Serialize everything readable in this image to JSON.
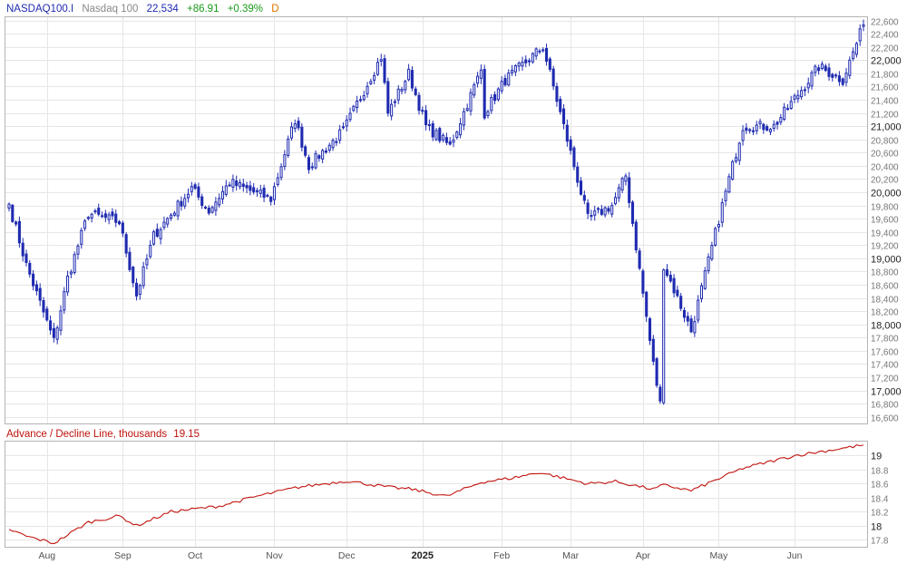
{
  "header": {
    "symbol": "NASDAQ100.I",
    "name": "Nasdaq 100",
    "last": "22,534",
    "change": "+86.91",
    "change_pct": "+0.39%",
    "period": "D"
  },
  "indicator": {
    "label": "Advance / Decline Line, thousands",
    "value": "19.15"
  },
  "colors": {
    "candle": "#1f2bb0",
    "ad_line": "#c0120c",
    "symbol_text": "#1f2bb0",
    "name_text": "#888888",
    "up_text": "#1a9a1a",
    "period_text": "#e07000",
    "indicator_text": "#c0120c"
  },
  "chart_data": [
    {
      "type": "candlestick",
      "title": "NASDAQ100.I Nasdaq 100",
      "y_axis_ticks": [
        "22,600",
        "22,400",
        "22,200",
        "22,000",
        "21,800",
        "21,600",
        "21,400",
        "21,200",
        "21,000",
        "20,800",
        "20,600",
        "20,400",
        "20,200",
        "20,000",
        "19,800",
        "19,600",
        "19,400",
        "19,200",
        "19,000",
        "18,800",
        "18,600",
        "18,400",
        "18,200",
        "18,000",
        "17,800",
        "17,600",
        "17,400",
        "17,200",
        "17,000",
        "16,800",
        "16,600"
      ],
      "y_axis_major": [
        "22,000",
        "21,000",
        "20,000",
        "19,000",
        "18,000",
        "17,000"
      ],
      "ylim": [
        16500,
        22650
      ],
      "x_axis_ticks": [
        "Aug",
        "Sep",
        "Oct",
        "Nov",
        "Dec",
        "2025",
        "Feb",
        "Mar",
        "Apr",
        "May",
        "Jun"
      ],
      "anchors": [
        {
          "date": "2024-07-17",
          "close": 19820
        },
        {
          "date": "2024-07-24",
          "close": 18900
        },
        {
          "date": "2024-08-05",
          "close": 17750
        },
        {
          "date": "2024-08-09",
          "close": 18700
        },
        {
          "date": "2024-08-19",
          "close": 19680
        },
        {
          "date": "2024-08-30",
          "close": 19550
        },
        {
          "date": "2024-09-06",
          "close": 18440
        },
        {
          "date": "2024-09-13",
          "close": 19340
        },
        {
          "date": "2024-09-30",
          "close": 20060
        },
        {
          "date": "2024-10-07",
          "close": 19720
        },
        {
          "date": "2024-10-15",
          "close": 20150
        },
        {
          "date": "2024-10-31",
          "close": 19900
        },
        {
          "date": "2024-11-11",
          "close": 21100
        },
        {
          "date": "2024-11-15",
          "close": 20400
        },
        {
          "date": "2024-11-29",
          "close": 20930
        },
        {
          "date": "2024-12-16",
          "close": 22050
        },
        {
          "date": "2024-12-18",
          "close": 21200
        },
        {
          "date": "2024-12-26",
          "close": 21800
        },
        {
          "date": "2025-01-02",
          "close": 21000
        },
        {
          "date": "2025-01-13",
          "close": 20700
        },
        {
          "date": "2025-01-24",
          "close": 21850
        },
        {
          "date": "2025-01-27",
          "close": 21200
        },
        {
          "date": "2025-02-04",
          "close": 21700
        },
        {
          "date": "2025-02-19",
          "close": 22200
        },
        {
          "date": "2025-02-27",
          "close": 21000
        },
        {
          "date": "2025-03-10",
          "close": 19600
        },
        {
          "date": "2025-03-19",
          "close": 19800
        },
        {
          "date": "2025-03-25",
          "close": 20250
        },
        {
          "date": "2025-04-04",
          "close": 17400
        },
        {
          "date": "2025-04-08",
          "close": 16800
        },
        {
          "date": "2025-04-09",
          "close": 18900
        },
        {
          "date": "2025-04-21",
          "close": 17900
        },
        {
          "date": "2025-05-02",
          "close": 19800
        },
        {
          "date": "2025-05-12",
          "close": 21000
        },
        {
          "date": "2025-05-23",
          "close": 21000
        },
        {
          "date": "2025-06-11",
          "close": 21900
        },
        {
          "date": "2025-06-20",
          "close": 21700
        },
        {
          "date": "2025-06-30",
          "close": 22534
        }
      ]
    },
    {
      "type": "line",
      "title": "Advance / Decline Line, thousands 19.15",
      "y_axis_ticks": [
        "19",
        "18.8",
        "18.6",
        "18.4",
        "18.2",
        "18",
        "17.8"
      ],
      "y_axis_major": [
        "19",
        "18"
      ],
      "ylim": [
        17.7,
        19.2
      ],
      "anchors": [
        {
          "date": "2024-07-17",
          "value": 17.95
        },
        {
          "date": "2024-07-24",
          "value": 17.85
        },
        {
          "date": "2024-08-05",
          "value": 17.75
        },
        {
          "date": "2024-08-19",
          "value": 18.05
        },
        {
          "date": "2024-08-30",
          "value": 18.14
        },
        {
          "date": "2024-09-06",
          "value": 18.0
        },
        {
          "date": "2024-09-20",
          "value": 18.2
        },
        {
          "date": "2024-10-10",
          "value": 18.28
        },
        {
          "date": "2024-10-25",
          "value": 18.42
        },
        {
          "date": "2024-11-12",
          "value": 18.55
        },
        {
          "date": "2024-12-02",
          "value": 18.64
        },
        {
          "date": "2024-12-18",
          "value": 18.55
        },
        {
          "date": "2024-12-27",
          "value": 18.52
        },
        {
          "date": "2025-01-10",
          "value": 18.42
        },
        {
          "date": "2025-01-24",
          "value": 18.62
        },
        {
          "date": "2025-02-06",
          "value": 18.68
        },
        {
          "date": "2025-02-18",
          "value": 18.76
        },
        {
          "date": "2025-03-10",
          "value": 18.6
        },
        {
          "date": "2025-03-20",
          "value": 18.63
        },
        {
          "date": "2025-04-04",
          "value": 18.52
        },
        {
          "date": "2025-04-09",
          "value": 18.58
        },
        {
          "date": "2025-04-21",
          "value": 18.5
        },
        {
          "date": "2025-05-12",
          "value": 18.82
        },
        {
          "date": "2025-06-02",
          "value": 19.0
        },
        {
          "date": "2025-06-30",
          "value": 19.15
        }
      ]
    }
  ]
}
